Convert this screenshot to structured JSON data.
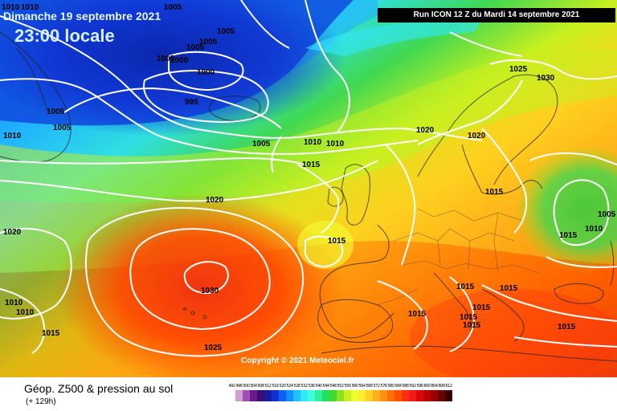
{
  "header": {
    "date_label": "Dimanche 19 septembre 2021",
    "time_label": "23:00 locale",
    "run_label": "Run ICON 12 Z du Mardi 14 septembre 2021"
  },
  "copyright": "Copyright © 2021 Meteociel.fr",
  "footer": {
    "title": "Géop. Z500 & pression au sol",
    "subtitle": "(+ 129h)"
  },
  "legend": {
    "values": [
      "492",
      "496",
      "500",
      "504",
      "508",
      "512",
      "516",
      "520",
      "524",
      "528",
      "532",
      "536",
      "540",
      "544",
      "548",
      "552",
      "556",
      "560",
      "564",
      "568",
      "572",
      "576",
      "580",
      "584",
      "588",
      "592",
      "596",
      "600",
      "604",
      "608",
      "612"
    ],
    "colors": [
      "#ffffff",
      "#d0a0d0",
      "#a050b0",
      "#6a1a8a",
      "#3a1070",
      "#1a1aa0",
      "#1030d0",
      "#1060f0",
      "#1090ff",
      "#20c0ff",
      "#30e8ff",
      "#40ffd8",
      "#30f0a0",
      "#20e060",
      "#40d830",
      "#90e020",
      "#c8f020",
      "#f0ff30",
      "#ffee30",
      "#ffd020",
      "#ffb020",
      "#ff9010",
      "#ff7000",
      "#ff5000",
      "#ff3010",
      "#f01818",
      "#d80808",
      "#b80000",
      "#980000",
      "#6a0000",
      "#380000"
    ]
  },
  "pressure_labels": [
    {
      "text": "1005"
    },
    {
      "text": "1005"
    },
    {
      "text": "1005"
    },
    {
      "text": "1005"
    },
    {
      "text": "1005"
    },
    {
      "text": "1000"
    },
    {
      "text": "1000"
    },
    {
      "text": "995"
    },
    {
      "text": "1005"
    },
    {
      "text": "1005"
    },
    {
      "text": "1010"
    },
    {
      "text": "1010"
    },
    {
      "text": "1010"
    },
    {
      "text": "1005"
    },
    {
      "text": "1010"
    },
    {
      "text": "1015"
    },
    {
      "text": "1020"
    },
    {
      "text": "1020"
    },
    {
      "text": "1015"
    },
    {
      "text": "1030"
    },
    {
      "text": "1010"
    },
    {
      "text": "1015"
    },
    {
      "text": "1025"
    },
    {
      "text": "1025"
    },
    {
      "text": "1030"
    },
    {
      "text": "1020"
    },
    {
      "text": "1005"
    },
    {
      "text": "1015"
    },
    {
      "text": "1010"
    },
    {
      "text": "1015"
    },
    {
      "text": "1015"
    },
    {
      "text": "1015"
    },
    {
      "text": "1015"
    },
    {
      "text": "1015"
    },
    {
      "text": "1015"
    },
    {
      "text": "1015"
    },
    {
      "text": "1015"
    },
    {
      "text": "1020"
    },
    {
      "text": "1010"
    },
    {
      "text": "1010"
    }
  ]
}
